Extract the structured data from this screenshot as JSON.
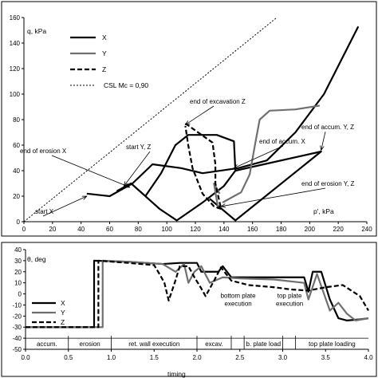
{
  "chart_data": [
    {
      "type": "line",
      "xlabel": "p', kPa",
      "ylabel": "q, kPa",
      "xlim": [
        0,
        240
      ],
      "ylim": [
        0,
        160
      ],
      "xticks": [
        0,
        20,
        40,
        60,
        80,
        100,
        120,
        140,
        160,
        180,
        200,
        220,
        240
      ],
      "yticks": [
        0,
        20,
        40,
        60,
        80,
        100,
        120,
        140,
        160
      ],
      "legend_position": "top-left",
      "legend": [
        "X",
        "Y",
        "Z",
        "CSL Mc = 0,90"
      ],
      "series": [
        {
          "name": "X",
          "style": "solid-thick",
          "color": "#000000",
          "points": [
            [
              44,
              22
            ],
            [
              60,
              20
            ],
            [
              76,
              30
            ],
            [
              90,
              45
            ],
            [
              110,
              42
            ],
            [
              125,
              38
            ],
            [
              150,
              42
            ],
            [
              170,
              48
            ],
            [
              190,
              70
            ],
            [
              210,
              100
            ],
            [
              234,
              153
            ]
          ]
        },
        {
          "name": "X",
          "style": "solid-thick",
          "color": "#000000",
          "points": [
            [
              85,
              20
            ],
            [
              96,
              38
            ],
            [
              106,
              60
            ],
            [
              115,
              68
            ],
            [
              135,
              68
            ],
            [
              147,
              63
            ],
            [
              148,
              40
            ],
            [
              140,
              28
            ],
            [
              125,
              15
            ],
            [
              107,
              1
            ],
            [
              95,
              10
            ],
            [
              75,
              30
            ],
            [
              65,
              24
            ]
          ]
        },
        {
          "name": "X",
          "style": "solid-thick",
          "color": "#000000",
          "points": [
            [
              148,
              40
            ],
            [
              208,
              55
            ],
            [
              148,
              1
            ],
            [
              130,
              18
            ]
          ]
        },
        {
          "name": "Y",
          "style": "solid-gray",
          "color": "#707070",
          "points": [
            [
              139,
              15
            ],
            [
              147,
              20
            ],
            [
              152,
              23
            ],
            [
              158,
              37
            ],
            [
              162,
              62
            ],
            [
              165,
              80
            ],
            [
              172,
              87
            ],
            [
              190,
              88
            ],
            [
              207,
              91
            ]
          ]
        },
        {
          "name": "Y",
          "style": "solid-gray",
          "color": "#707070",
          "points": [
            [
              136,
              10
            ],
            [
              133,
              30
            ],
            [
              137,
              22
            ]
          ]
        },
        {
          "name": "Z",
          "style": "dashed",
          "color": "#000000",
          "points": [
            [
              113,
              77
            ],
            [
              132,
              62
            ],
            [
              134,
              45
            ],
            [
              134,
              30
            ],
            [
              138,
              10
            ],
            [
              133,
              12
            ],
            [
              125,
              22
            ],
            [
              118,
              42
            ],
            [
              115,
              60
            ],
            [
              113,
              75
            ]
          ]
        },
        {
          "name": "CSL Mc = 0,90",
          "style": "dotted",
          "color": "#000000",
          "points": [
            [
              0,
              0
            ],
            [
              177,
              160
            ]
          ]
        }
      ],
      "annotations": [
        {
          "text": "end of excavation Z",
          "at": [
            113,
            76
          ]
        },
        {
          "text": "start Y, Z",
          "at": [
            70,
            28
          ]
        },
        {
          "text": "end of erosion X",
          "at": [
            74,
            27
          ]
        },
        {
          "text": "end of accum. X",
          "at": [
            147,
            42
          ]
        },
        {
          "text": "end of accum. Y, Z",
          "at": [
            208,
            56
          ]
        },
        {
          "text": "end of erosion Y, Z",
          "at": [
            138,
            12
          ]
        },
        {
          "text": "start X",
          "at": [
            44,
            20
          ]
        }
      ]
    },
    {
      "type": "line",
      "xlabel": "timing",
      "ylabel": "θ, deg",
      "xlim": [
        0,
        4.0
      ],
      "ylim": [
        -50,
        40
      ],
      "xticks": [
        0.0,
        0.5,
        1.0,
        1.5,
        2.0,
        2.5,
        3.0,
        3.5,
        4.0
      ],
      "yticks": [
        -50,
        -40,
        -30,
        -20,
        -10,
        0,
        10,
        20,
        30,
        40
      ],
      "legend_position": "left",
      "legend": [
        "X",
        "Y",
        "Z"
      ],
      "stages": [
        {
          "label": "accum.",
          "start": 0.0,
          "end": 0.5
        },
        {
          "label": "erosion",
          "start": 0.5,
          "end": 1.0
        },
        {
          "label": "ret. wall execution",
          "start": 1.0,
          "end": 2.0
        },
        {
          "label": "excav.",
          "start": 2.0,
          "end": 2.4
        },
        {
          "label": "b. plate load",
          "start": 2.55,
          "end": 3.0
        },
        {
          "label": "top plate loading",
          "start": 3.15,
          "end": 4.0
        }
      ],
      "stage_header_labels": [
        {
          "text": "bottom plate execution",
          "at": 2.48
        },
        {
          "text": "top plate execution",
          "at": 3.08
        }
      ],
      "series": [
        {
          "name": "X",
          "style": "solid-thick",
          "color": "#000000",
          "points": [
            [
              0,
              -30
            ],
            [
              0.8,
              -30
            ],
            [
              0.8,
              30
            ],
            [
              1.2,
              29
            ],
            [
              1.6,
              27
            ],
            [
              1.8,
              28
            ],
            [
              2.0,
              28
            ],
            [
              2.05,
              20
            ],
            [
              2.15,
              20
            ],
            [
              2.25,
              20
            ],
            [
              2.3,
              25
            ],
            [
              2.4,
              15
            ],
            [
              2.8,
              15
            ],
            [
              3.25,
              15
            ],
            [
              3.3,
              2
            ],
            [
              3.35,
              20
            ],
            [
              3.45,
              20
            ],
            [
              3.55,
              -5
            ],
            [
              3.65,
              -22
            ],
            [
              3.75,
              -24
            ],
            [
              3.9,
              -23
            ],
            [
              4.0,
              -22
            ]
          ]
        },
        {
          "name": "Y",
          "style": "solid-gray",
          "color": "#707070",
          "points": [
            [
              0,
              -30
            ],
            [
              0.9,
              -30
            ],
            [
              0.9,
              30
            ],
            [
              1.2,
              29
            ],
            [
              1.6,
              27
            ],
            [
              1.75,
              20
            ],
            [
              1.85,
              27
            ],
            [
              1.9,
              10
            ],
            [
              1.97,
              20
            ],
            [
              2.05,
              25
            ],
            [
              2.15,
              10
            ],
            [
              2.3,
              15
            ],
            [
              2.5,
              14
            ],
            [
              2.9,
              13
            ],
            [
              3.25,
              10
            ],
            [
              3.3,
              -5
            ],
            [
              3.4,
              18
            ],
            [
              3.55,
              -15
            ],
            [
              3.65,
              -8
            ],
            [
              3.75,
              -18
            ],
            [
              3.85,
              -24
            ],
            [
              4.0,
              -22
            ]
          ]
        },
        {
          "name": "Z",
          "style": "dashed",
          "color": "#000000",
          "points": [
            [
              0,
              -30
            ],
            [
              0.85,
              -30
            ],
            [
              0.85,
              30
            ],
            [
              1.2,
              28
            ],
            [
              1.5,
              26
            ],
            [
              1.57,
              17
            ],
            [
              1.62,
              10
            ],
            [
              1.67,
              -6
            ],
            [
              1.74,
              10
            ],
            [
              1.8,
              25
            ],
            [
              1.9,
              25
            ],
            [
              1.97,
              15
            ],
            [
              2.05,
              5
            ],
            [
              2.1,
              -2
            ],
            [
              2.2,
              12
            ],
            [
              2.28,
              24
            ],
            [
              2.4,
              12
            ],
            [
              2.6,
              8
            ],
            [
              2.9,
              6
            ],
            [
              3.1,
              4
            ],
            [
              3.3,
              3
            ],
            [
              3.5,
              6
            ],
            [
              3.7,
              8
            ],
            [
              3.9,
              -2
            ],
            [
              4.0,
              -15
            ]
          ]
        }
      ]
    }
  ]
}
